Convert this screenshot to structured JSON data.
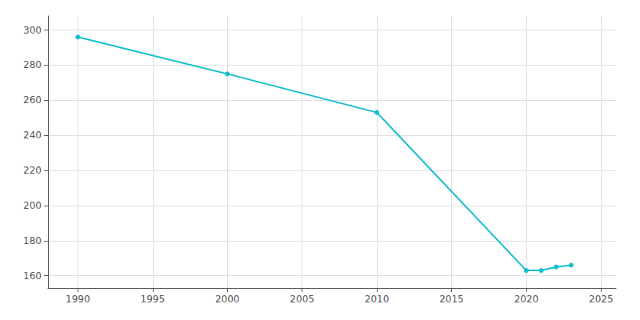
{
  "chart_data": {
    "type": "line",
    "x": [
      1990,
      2000,
      2010,
      2020,
      2021,
      2022,
      2023
    ],
    "values": [
      296,
      275,
      253,
      163,
      163,
      165,
      166
    ],
    "color": "#17becf",
    "marker": "circle",
    "xlim": [
      1988,
      2026
    ],
    "ylim": [
      153,
      308
    ],
    "xticks": [
      1990,
      1995,
      2000,
      2005,
      2010,
      2015,
      2020,
      2025
    ],
    "yticks": [
      160,
      180,
      200,
      220,
      240,
      260,
      280,
      300
    ],
    "grid": true
  }
}
